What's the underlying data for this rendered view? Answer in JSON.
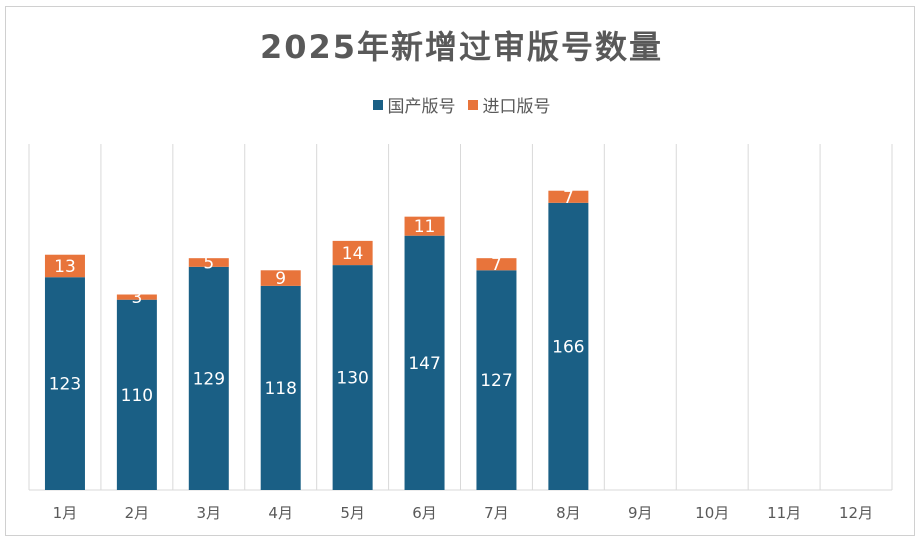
{
  "chart_data": {
    "type": "bar",
    "stacked": true,
    "title": "2025年新增过审版号数量",
    "categories": [
      "1月",
      "2月",
      "3月",
      "4月",
      "5月",
      "6月",
      "7月",
      "8月",
      "9月",
      "10月",
      "11月",
      "12月"
    ],
    "series": [
      {
        "name": "国产版号",
        "color": "#1a5f85",
        "values": [
          123,
          110,
          129,
          118,
          130,
          147,
          127,
          166,
          null,
          null,
          null,
          null
        ]
      },
      {
        "name": "进口版号",
        "color": "#e8743b",
        "values": [
          13,
          3,
          5,
          9,
          14,
          11,
          7,
          7,
          null,
          null,
          null,
          null
        ]
      }
    ],
    "ylim": [
      0,
      200
    ],
    "grid": "vertical",
    "legend": "top-center"
  }
}
